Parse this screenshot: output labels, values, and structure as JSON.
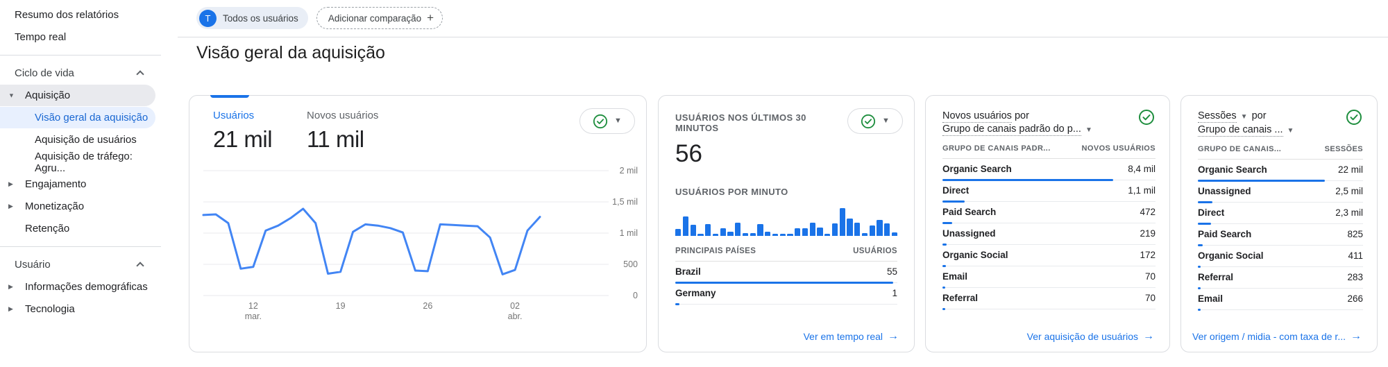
{
  "page_title": "Visão geral da aquisição",
  "header": {
    "audience_chip": {
      "avatar_letter": "T",
      "label": "Todos os usuários"
    },
    "compare_chip": {
      "label": "Adicionar comparação",
      "plus": "+"
    }
  },
  "sidebar": {
    "items": [
      {
        "label": "Resumo dos relatórios",
        "level": 0
      },
      {
        "label": "Tempo real",
        "level": 0
      },
      {
        "type": "divider"
      },
      {
        "label": "Ciclo de vida",
        "level": 0,
        "section": true,
        "right_icon": "chevron-up"
      },
      {
        "label": "Aquisição",
        "level": 1,
        "left_icon": "triangle-down",
        "state": "expanded"
      },
      {
        "label": "Visão geral da aquisição",
        "level": 2,
        "state": "active"
      },
      {
        "label": "Aquisição de usuários",
        "level": 2
      },
      {
        "label": "Aquisição de tráfego: Agru...",
        "level": 2
      },
      {
        "label": "Engajamento",
        "level": 1,
        "left_icon": "triangle-right"
      },
      {
        "label": "Monetização",
        "level": 1,
        "left_icon": "triangle-right"
      },
      {
        "label": "Retenção",
        "level": 1
      },
      {
        "type": "divider"
      },
      {
        "label": "Usuário",
        "level": 0,
        "section": true,
        "right_icon": "chevron-up"
      },
      {
        "label": "Informações demográficas",
        "level": 1,
        "left_icon": "triangle-right"
      },
      {
        "label": "Tecnologia",
        "level": 1,
        "left_icon": "triangle-right"
      }
    ]
  },
  "cards": {
    "users_overview": {
      "tabs": [
        {
          "label": "Usuários",
          "value": "21 mil",
          "active": true
        },
        {
          "label": "Novos usuários",
          "value": "11 mil",
          "active": false
        }
      ]
    },
    "realtime": {
      "title": "USUÁRIOS NOS ÚLTIMOS 30 MINUTOS",
      "value": "56",
      "per_minute_title": "USUÁRIOS POR MINUTO",
      "table": {
        "headers": [
          "PRINCIPAIS PAÍSES",
          "USUÁRIOS"
        ],
        "rows": [
          {
            "label": "Brazil",
            "value": "55",
            "bar": 0.98
          },
          {
            "label": "Germany",
            "value": "1",
            "bar": 0.02
          }
        ]
      },
      "footer_link": "Ver em tempo real"
    },
    "new_users_by_channel": {
      "title_metric": "Novos usuários",
      "title_suffix": "por",
      "title_dimension": "Grupo de canais padrão do p...",
      "table": {
        "headers": [
          "GRUPO DE CANAIS PADR...",
          "NOVOS USUÁRIOS"
        ],
        "rows": [
          {
            "label": "Organic Search",
            "value": "8,4 mil",
            "bar": 0.8
          },
          {
            "label": "Direct",
            "value": "1,1 mil",
            "bar": 0.105
          },
          {
            "label": "Paid Search",
            "value": "472",
            "bar": 0.045
          },
          {
            "label": "Unassigned",
            "value": "219",
            "bar": 0.021
          },
          {
            "label": "Organic Social",
            "value": "172",
            "bar": 0.016
          },
          {
            "label": "Email",
            "value": "70",
            "bar": 0.007
          },
          {
            "label": "Referral",
            "value": "70",
            "bar": 0.007
          }
        ]
      },
      "footer_link": "Ver aquisição de usuários"
    },
    "sessions_by_channel": {
      "title_metric": "Sessões",
      "title_suffix": "por",
      "title_dimension": "Grupo de canais ...",
      "table": {
        "headers": [
          "GRUPO DE CANAIS...",
          "SESSÕES"
        ],
        "rows": [
          {
            "label": "Organic Search",
            "value": "22 mil",
            "bar": 0.77
          },
          {
            "label": "Unassigned",
            "value": "2,5 mil",
            "bar": 0.087
          },
          {
            "label": "Direct",
            "value": "2,3 mil",
            "bar": 0.08
          },
          {
            "label": "Paid Search",
            "value": "825",
            "bar": 0.029
          },
          {
            "label": "Organic Social",
            "value": "411",
            "bar": 0.014
          },
          {
            "label": "Referral",
            "value": "283",
            "bar": 0.01
          },
          {
            "label": "Email",
            "value": "266",
            "bar": 0.009
          }
        ]
      },
      "footer_link": "Ver origem / midia - com taxa de r..."
    }
  },
  "chart_data": [
    {
      "type": "line",
      "title": "Usuários por dia",
      "series": [
        {
          "name": "Usuários",
          "values": [
            1290,
            1300,
            1160,
            430,
            460,
            1040,
            1120,
            1240,
            1390,
            1160,
            350,
            380,
            1020,
            1140,
            1120,
            1080,
            1010,
            400,
            390,
            1140,
            1130,
            1120,
            1110,
            930,
            340,
            410,
            1040,
            1260
          ]
        }
      ],
      "ylim": [
        0,
        2000
      ],
      "y_ticks": [
        {
          "v": 0,
          "label": "0"
        },
        {
          "v": 500,
          "label": "500"
        },
        {
          "v": 1000,
          "label": "1 mil"
        },
        {
          "v": 1500,
          "label": "1,5 mil"
        },
        {
          "v": 2000,
          "label": "2 mil"
        }
      ],
      "x_tick_labels": [
        {
          "index": 4,
          "lines": [
            "12",
            "mar."
          ]
        },
        {
          "index": 11,
          "lines": [
            "19"
          ]
        },
        {
          "index": 18,
          "lines": [
            "26"
          ]
        },
        {
          "index": 25,
          "lines": [
            "02",
            "abr."
          ]
        }
      ],
      "line_color": "#4285f4",
      "grid": true,
      "legend": "none"
    },
    {
      "type": "bar",
      "title": "USUÁRIOS POR MINUTO",
      "values_relative_pct": [
        25,
        70,
        40,
        8,
        42,
        8,
        28,
        15,
        48,
        9,
        9,
        42,
        14,
        8,
        8,
        8,
        28,
        28,
        48,
        31,
        8,
        45,
        100,
        62,
        48,
        11,
        38,
        58,
        45,
        12
      ],
      "bar_color": "#1a73e8",
      "xlabel": "",
      "ylabel": "",
      "grid": false
    }
  ],
  "colors": {
    "accent_blue": "#1a73e8",
    "line_blue": "#4285f4",
    "link_blue": "#1a73e8",
    "green_check": "#1e8e3e",
    "active_sidebar_bg": "#e8f0fe",
    "active_sidebar_text": "#1967d2"
  }
}
